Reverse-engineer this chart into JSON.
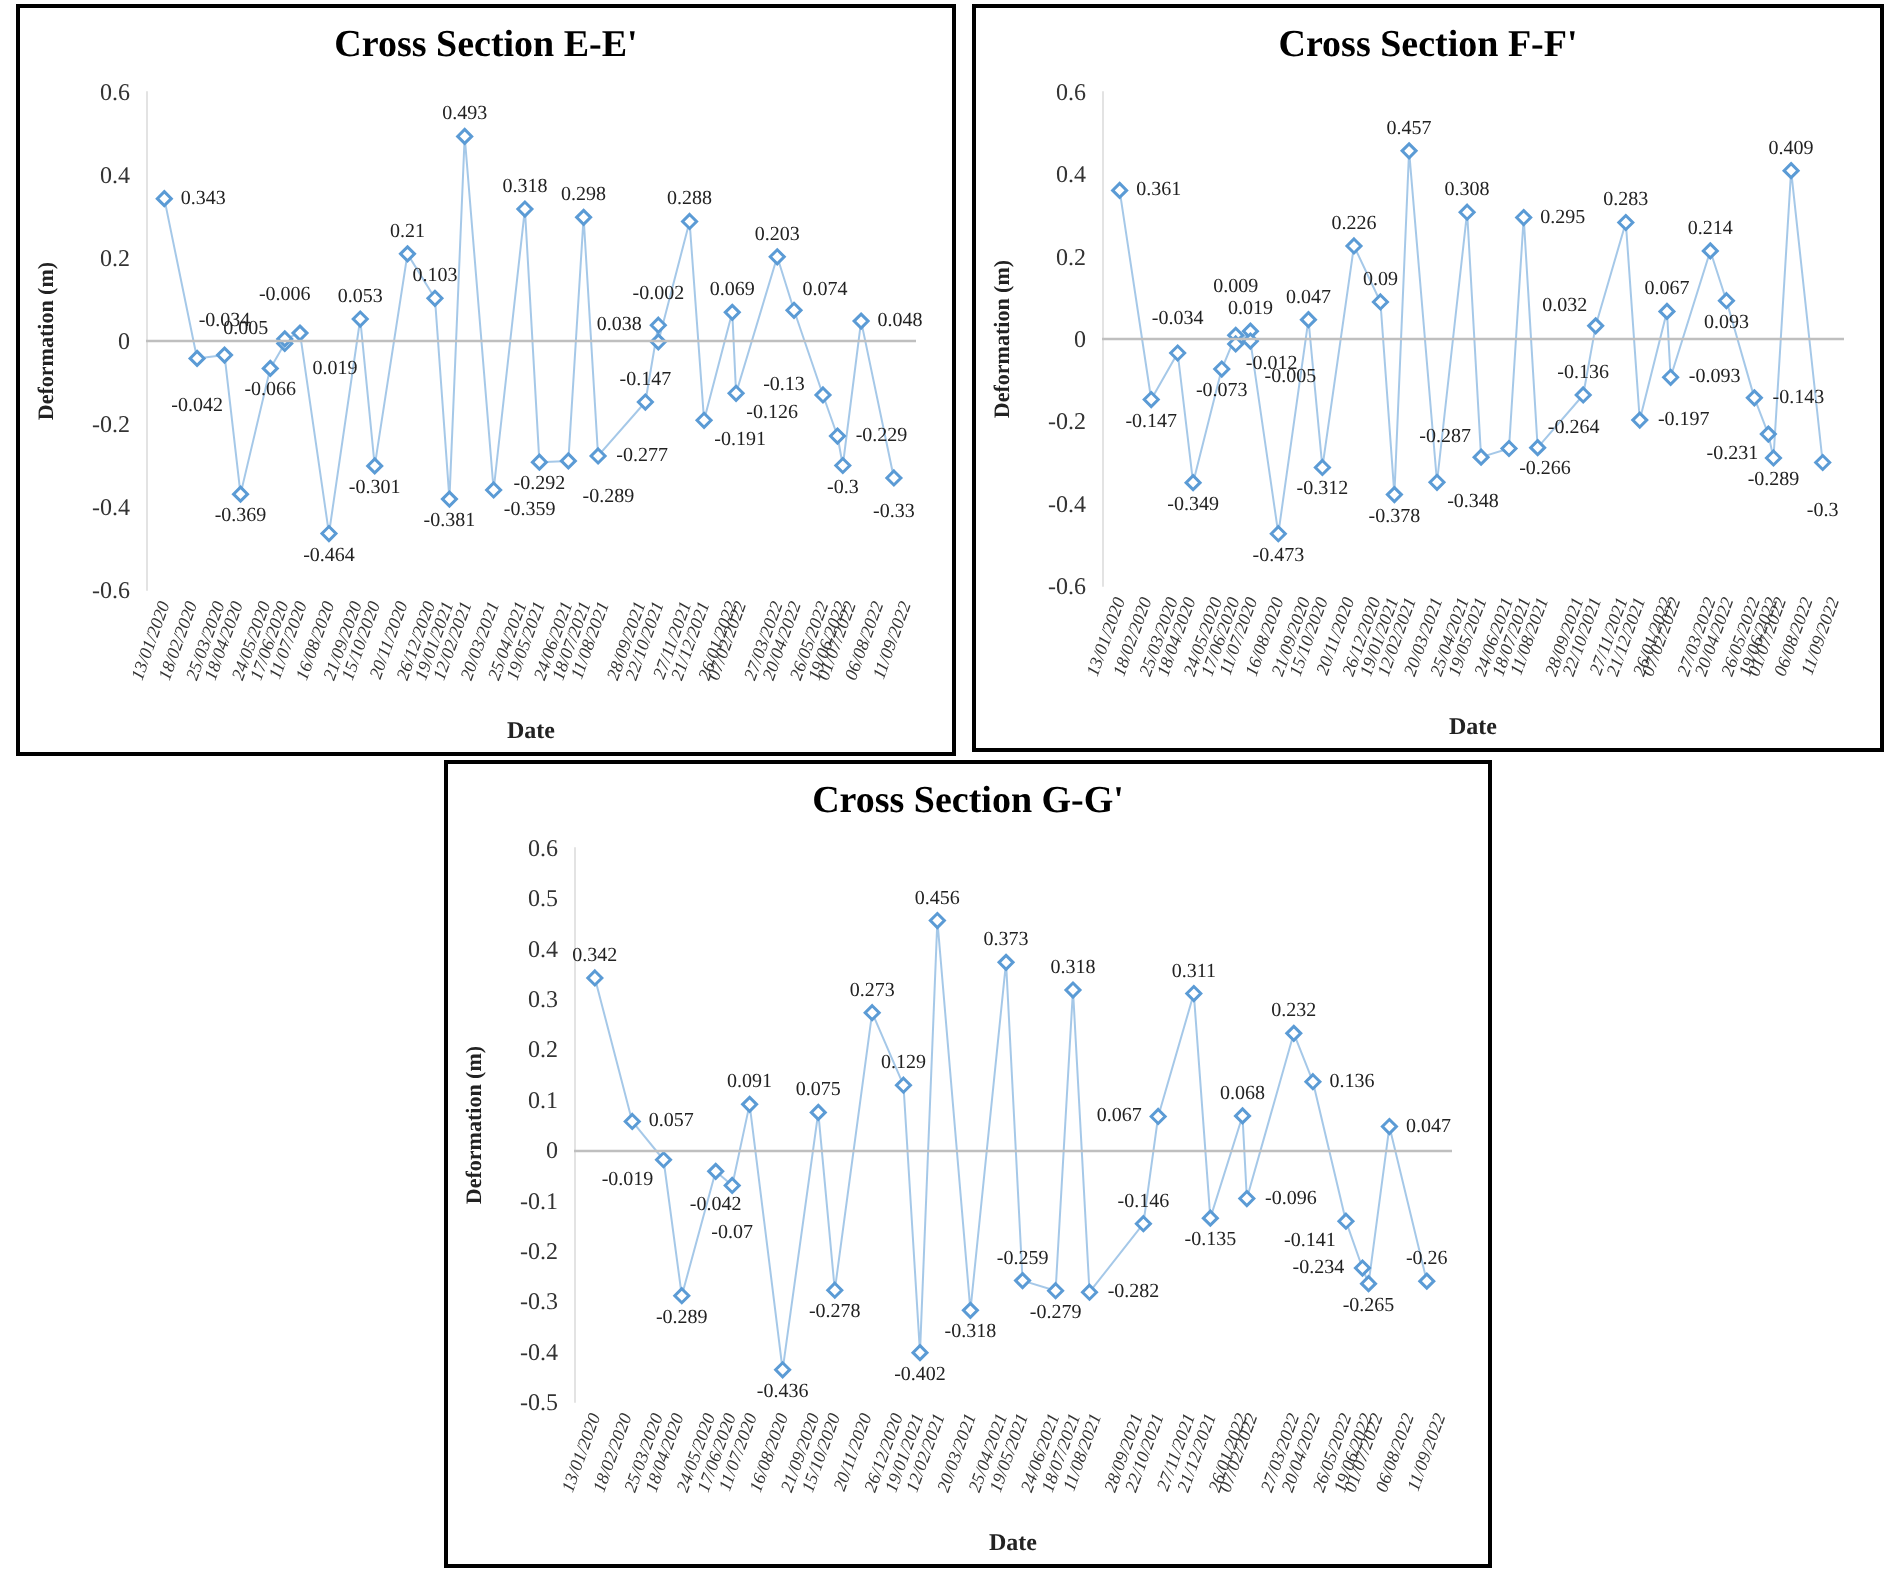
{
  "chart_data": [
    {
      "type": "line",
      "title": "Cross Section E-E'",
      "xlabel": "Date",
      "ylabel": "Deformation (m)",
      "marker": "diamond",
      "data_labels": true,
      "grid": false,
      "x": [
        "2020-01-13",
        "2020-02-25",
        "2020-04-01",
        "2020-04-22",
        "2020-05-31",
        "2020-06-19",
        "2020-06-19",
        "2020-07-09",
        "2020-08-16",
        "2020-09-26",
        "2020-10-15",
        "2020-11-27",
        "2021-01-02",
        "2021-01-21",
        "2021-02-10",
        "2021-03-20",
        "2021-04-30",
        "2021-05-19",
        "2021-06-26",
        "2021-07-16",
        "2021-08-04",
        "2021-10-05",
        "2021-10-22",
        "2021-10-22",
        "2021-12-02",
        "2021-12-21",
        "2022-01-27",
        "2022-02-01",
        "2022-03-27",
        "2022-04-18",
        "2022-05-26",
        "2022-06-14",
        "2022-06-21",
        "2022-07-15",
        "2022-08-27"
      ],
      "series": [
        {
          "color": "#5b9bd5",
          "values": [
            0.343,
            -0.042,
            -0.034,
            -0.369,
            -0.066,
            -0.006,
            0.005,
            0.019,
            -0.464,
            0.053,
            -0.301,
            0.21,
            0.103,
            -0.381,
            0.493,
            -0.359,
            0.318,
            -0.292,
            -0.289,
            0.298,
            -0.277,
            -0.147,
            0.038,
            -0.002,
            0.288,
            -0.191,
            0.069,
            -0.126,
            0.203,
            0.074,
            -0.13,
            -0.229,
            -0.3,
            0.048,
            -0.33
          ]
        }
      ],
      "xlim": [
        "2019-12-20",
        "2022-09-25"
      ],
      "xticks": [
        {
          "value": "2020-01-13",
          "label": "13/01/2020"
        },
        {
          "value": "2020-02-18",
          "label": "18/02/2020"
        },
        {
          "value": "2020-03-25",
          "label": "25/03/2020"
        },
        {
          "value": "2020-04-18",
          "label": "18/04/2020"
        },
        {
          "value": "2020-05-24",
          "label": "24/05/2020"
        },
        {
          "value": "2020-06-17",
          "label": "17/06/2020"
        },
        {
          "value": "2020-07-11",
          "label": "11/07/2020"
        },
        {
          "value": "2020-08-16",
          "label": "16/08/2020"
        },
        {
          "value": "2020-09-21",
          "label": "21/09/2020"
        },
        {
          "value": "2020-10-15",
          "label": "15/10/2020"
        },
        {
          "value": "2020-11-20",
          "label": "20/11/2020"
        },
        {
          "value": "2020-12-26",
          "label": "26/12/2020"
        },
        {
          "value": "2021-01-19",
          "label": "19/01/2021"
        },
        {
          "value": "2021-02-12",
          "label": "12/02/2021"
        },
        {
          "value": "2021-03-20",
          "label": "20/03/2021"
        },
        {
          "value": "2021-04-25",
          "label": "25/04/2021"
        },
        {
          "value": "2021-05-19",
          "label": "19/05/2021"
        },
        {
          "value": "2021-06-24",
          "label": "24/06/2021"
        },
        {
          "value": "2021-07-18",
          "label": "18/07/2021"
        },
        {
          "value": "2021-08-11",
          "label": "11/08/2021"
        },
        {
          "value": "2021-09-28",
          "label": "28/09/2021"
        },
        {
          "value": "2021-10-22",
          "label": "22/10/2021"
        },
        {
          "value": "2021-11-27",
          "label": "27/11/2021"
        },
        {
          "value": "2021-12-21",
          "label": "21/12/2021"
        },
        {
          "value": "2022-01-26",
          "label": "26/01/2022"
        },
        {
          "value": "2022-02-07",
          "label": "07/02/2022"
        },
        {
          "value": "2022-03-27",
          "label": "27/03/2022"
        },
        {
          "value": "2022-04-20",
          "label": "20/04/2022"
        },
        {
          "value": "2022-05-26",
          "label": "26/05/2022"
        },
        {
          "value": "2022-06-19",
          "label": "19/06/2022"
        },
        {
          "value": "2022-07-01",
          "label": "01/07/2022"
        },
        {
          "value": "2022-08-06",
          "label": "06/08/2022"
        },
        {
          "value": "2022-09-11",
          "label": "11/09/2022"
        }
      ],
      "ylim": [
        -0.6,
        0.6
      ],
      "yticks": [
        -0.6,
        -0.4,
        -0.2,
        0,
        0.2,
        0.4,
        0.6
      ],
      "ref_lines": [
        {
          "axis": "y",
          "value": 0,
          "color": "#bfbfbf"
        }
      ]
    },
    {
      "type": "line",
      "title": "Cross Section F-F'",
      "xlabel": "Date",
      "ylabel": "Deformation (m)",
      "marker": "diamond",
      "data_labels": true,
      "grid": false,
      "x": [
        "2020-01-13",
        "2020-02-25",
        "2020-04-01",
        "2020-04-22",
        "2020-05-31",
        "2020-06-19",
        "2020-06-19",
        "2020-07-09",
        "2020-07-09",
        "2020-08-16",
        "2020-09-26",
        "2020-10-15",
        "2020-11-27",
        "2021-01-02",
        "2021-01-21",
        "2021-02-10",
        "2021-03-20",
        "2021-04-30",
        "2021-05-19",
        "2021-06-26",
        "2021-07-16",
        "2021-08-04",
        "2021-10-05",
        "2021-10-22",
        "2021-12-02",
        "2021-12-21",
        "2022-01-27",
        "2022-02-01",
        "2022-03-27",
        "2022-04-18",
        "2022-05-26",
        "2022-06-14",
        "2022-06-21",
        "2022-07-15",
        "2022-08-27"
      ],
      "series": [
        {
          "color": "#5b9bd5",
          "values": [
            0.361,
            -0.147,
            -0.034,
            -0.349,
            -0.073,
            0.009,
            -0.012,
            0.019,
            -0.005,
            -0.473,
            0.047,
            -0.312,
            0.226,
            0.09,
            -0.378,
            0.457,
            -0.348,
            0.308,
            -0.287,
            -0.266,
            0.295,
            -0.264,
            -0.136,
            0.032,
            0.283,
            -0.197,
            0.067,
            -0.093,
            0.214,
            0.093,
            -0.143,
            -0.231,
            -0.289,
            0.409,
            -0.3
          ]
        }
      ],
      "xlim": [
        "2019-12-20",
        "2022-09-25"
      ],
      "xticks": [
        {
          "value": "2020-01-13",
          "label": "13/01/2020"
        },
        {
          "value": "2020-02-18",
          "label": "18/02/2020"
        },
        {
          "value": "2020-03-25",
          "label": "25/03/2020"
        },
        {
          "value": "2020-04-18",
          "label": "18/04/2020"
        },
        {
          "value": "2020-05-24",
          "label": "24/05/2020"
        },
        {
          "value": "2020-06-17",
          "label": "17/06/2020"
        },
        {
          "value": "2020-07-11",
          "label": "11/07/2020"
        },
        {
          "value": "2020-08-16",
          "label": "16/08/2020"
        },
        {
          "value": "2020-09-21",
          "label": "21/09/2020"
        },
        {
          "value": "2020-10-15",
          "label": "15/10/2020"
        },
        {
          "value": "2020-11-20",
          "label": "20/11/2020"
        },
        {
          "value": "2020-12-26",
          "label": "26/12/2020"
        },
        {
          "value": "2021-01-19",
          "label": "19/01/2021"
        },
        {
          "value": "2021-02-12",
          "label": "12/02/2021"
        },
        {
          "value": "2021-03-20",
          "label": "20/03/2021"
        },
        {
          "value": "2021-04-25",
          "label": "25/04/2021"
        },
        {
          "value": "2021-05-19",
          "label": "19/05/2021"
        },
        {
          "value": "2021-06-24",
          "label": "24/06/2021"
        },
        {
          "value": "2021-07-18",
          "label": "18/07/2021"
        },
        {
          "value": "2021-08-11",
          "label": "11/08/2021"
        },
        {
          "value": "2021-09-28",
          "label": "28/09/2021"
        },
        {
          "value": "2021-10-22",
          "label": "22/10/2021"
        },
        {
          "value": "2021-11-27",
          "label": "27/11/2021"
        },
        {
          "value": "2021-12-21",
          "label": "21/12/2021"
        },
        {
          "value": "2022-01-26",
          "label": "26/01/2022"
        },
        {
          "value": "2022-02-07",
          "label": "07/02/2022"
        },
        {
          "value": "2022-03-27",
          "label": "27/03/2022"
        },
        {
          "value": "2022-04-20",
          "label": "20/04/2022"
        },
        {
          "value": "2022-05-26",
          "label": "26/05/2022"
        },
        {
          "value": "2022-06-19",
          "label": "19/06/2022"
        },
        {
          "value": "2022-07-01",
          "label": "01/07/2022"
        },
        {
          "value": "2022-08-06",
          "label": "06/08/2022"
        },
        {
          "value": "2022-09-11",
          "label": "11/09/2022"
        }
      ],
      "ylim": [
        -0.6,
        0.6
      ],
      "yticks": [
        -0.6,
        -0.4,
        -0.2,
        0,
        0.2,
        0.4,
        0.6
      ],
      "ref_lines": [
        {
          "axis": "y",
          "value": 0,
          "color": "#bfbfbf"
        }
      ]
    },
    {
      "type": "line",
      "title": "Cross Section G-G'",
      "xlabel": "Date",
      "ylabel": "Deformation (m)",
      "marker": "diamond",
      "data_labels": true,
      "grid": false,
      "x": [
        "2020-01-13",
        "2020-02-25",
        "2020-04-01",
        "2020-04-22",
        "2020-05-31",
        "2020-06-19",
        "2020-07-09",
        "2020-08-16",
        "2020-09-26",
        "2020-10-15",
        "2020-11-27",
        "2021-01-02",
        "2021-01-21",
        "2021-02-10",
        "2021-03-20",
        "2021-04-30",
        "2021-05-19",
        "2021-06-26",
        "2021-07-16",
        "2021-08-04",
        "2021-10-05",
        "2021-10-22",
        "2021-12-02",
        "2021-12-21",
        "2022-01-27",
        "2022-02-01",
        "2022-03-27",
        "2022-04-18",
        "2022-05-26",
        "2022-06-14",
        "2022-06-21",
        "2022-07-15",
        "2022-08-27"
      ],
      "series": [
        {
          "color": "#5b9bd5",
          "values": [
            0.342,
            0.057,
            -0.019,
            -0.289,
            -0.042,
            -0.07,
            0.091,
            -0.436,
            0.075,
            -0.278,
            0.273,
            0.129,
            -0.402,
            0.456,
            -0.318,
            0.373,
            -0.259,
            -0.279,
            0.318,
            -0.282,
            -0.146,
            0.067,
            0.311,
            -0.135,
            0.068,
            -0.096,
            0.232,
            0.136,
            -0.141,
            -0.234,
            -0.265,
            0.047,
            -0.26
          ]
        }
      ],
      "xlim": [
        "2019-12-20",
        "2022-09-25"
      ],
      "xticks": [
        {
          "value": "2020-01-13",
          "label": "13/01/2020"
        },
        {
          "value": "2020-02-18",
          "label": "18/02/2020"
        },
        {
          "value": "2020-03-25",
          "label": "25/03/2020"
        },
        {
          "value": "2020-04-18",
          "label": "18/04/2020"
        },
        {
          "value": "2020-05-24",
          "label": "24/05/2020"
        },
        {
          "value": "2020-06-17",
          "label": "17/06/2020"
        },
        {
          "value": "2020-07-11",
          "label": "11/07/2020"
        },
        {
          "value": "2020-08-16",
          "label": "16/08/2020"
        },
        {
          "value": "2020-09-21",
          "label": "21/09/2020"
        },
        {
          "value": "2020-10-15",
          "label": "15/10/2020"
        },
        {
          "value": "2020-11-20",
          "label": "20/11/2020"
        },
        {
          "value": "2020-12-26",
          "label": "26/12/2020"
        },
        {
          "value": "2021-01-19",
          "label": "19/01/2021"
        },
        {
          "value": "2021-02-12",
          "label": "12/02/2021"
        },
        {
          "value": "2021-03-20",
          "label": "20/03/2021"
        },
        {
          "value": "2021-04-25",
          "label": "25/04/2021"
        },
        {
          "value": "2021-05-19",
          "label": "19/05/2021"
        },
        {
          "value": "2021-06-24",
          "label": "24/06/2021"
        },
        {
          "value": "2021-07-18",
          "label": "18/07/2021"
        },
        {
          "value": "2021-08-11",
          "label": "11/08/2021"
        },
        {
          "value": "2021-09-28",
          "label": "28/09/2021"
        },
        {
          "value": "2021-10-22",
          "label": "22/10/2021"
        },
        {
          "value": "2021-11-27",
          "label": "27/11/2021"
        },
        {
          "value": "2021-12-21",
          "label": "21/12/2021"
        },
        {
          "value": "2022-01-26",
          "label": "26/01/2022"
        },
        {
          "value": "2022-02-07",
          "label": "07/02/2022"
        },
        {
          "value": "2022-03-27",
          "label": "27/03/2022"
        },
        {
          "value": "2022-04-20",
          "label": "20/04/2022"
        },
        {
          "value": "2022-05-26",
          "label": "26/05/2022"
        },
        {
          "value": "2022-06-19",
          "label": "19/06/2022"
        },
        {
          "value": "2022-07-01",
          "label": "01/07/2022"
        },
        {
          "value": "2022-08-06",
          "label": "06/08/2022"
        },
        {
          "value": "2022-09-11",
          "label": "11/09/2022"
        }
      ],
      "ylim": [
        -0.5,
        0.6
      ],
      "yticks": [
        -0.5,
        -0.4,
        -0.3,
        -0.2,
        -0.1,
        0,
        0.1,
        0.2,
        0.3,
        0.4,
        0.5,
        0.6
      ],
      "ref_lines": [
        {
          "axis": "y",
          "value": 0,
          "color": "#bfbfbf"
        }
      ]
    }
  ]
}
